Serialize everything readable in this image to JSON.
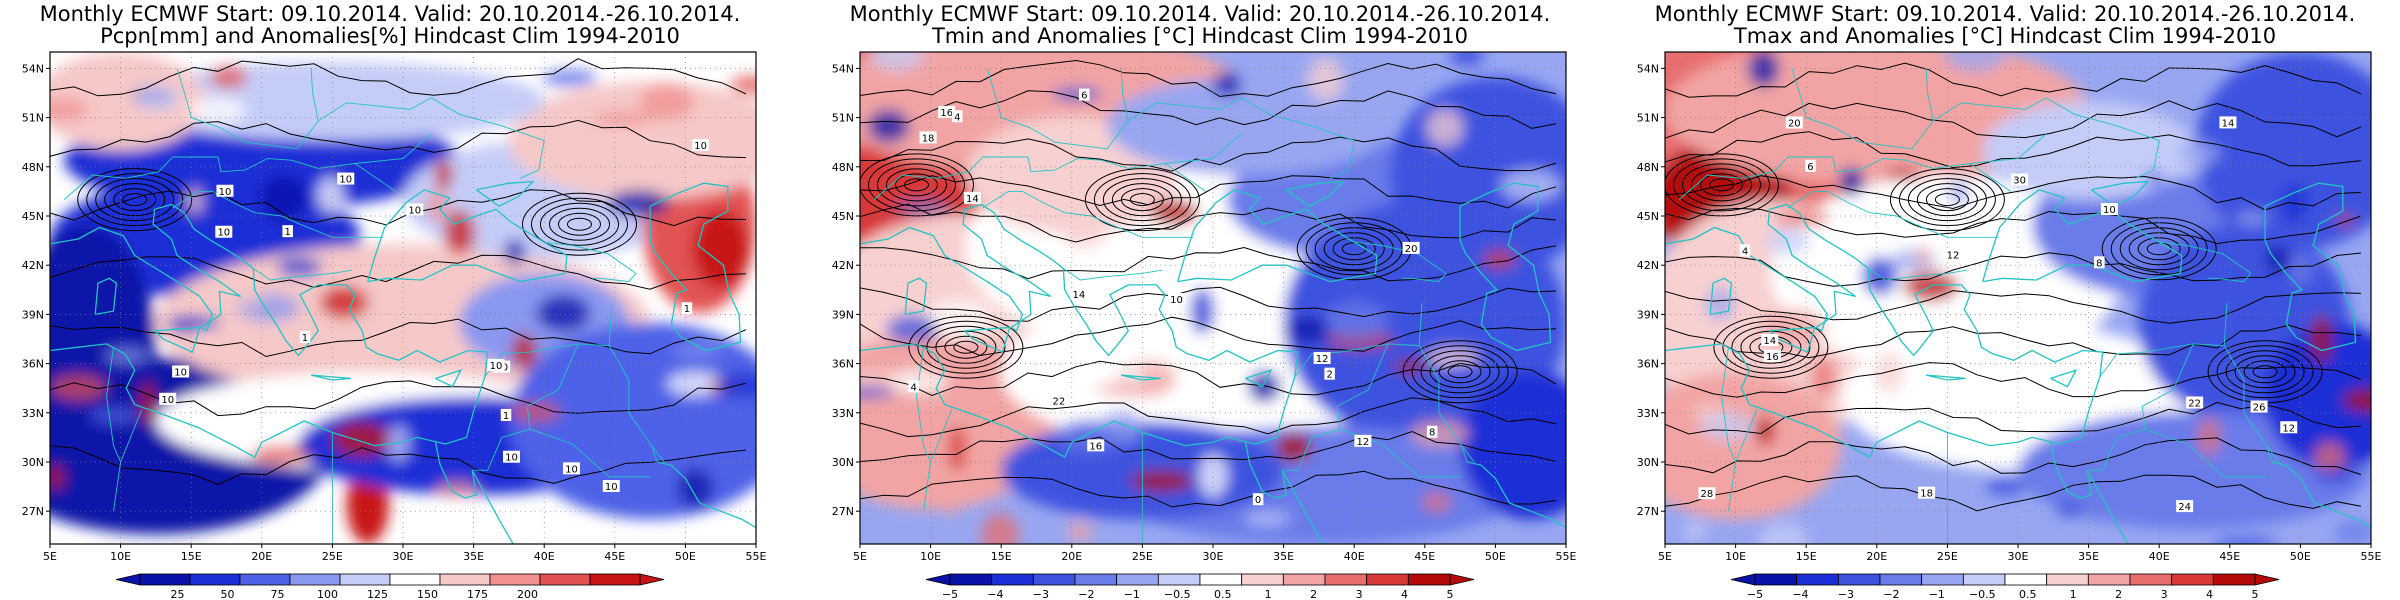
{
  "panels": [
    {
      "title_line1": "Monthly ECMWF Start: 09.10.2014. Valid: 20.10.2014.-26.10.2014.",
      "title_line2": "Pcpn[mm] and Anomalies[%] Hindcast Clim 1994-2010",
      "colorbar_type": "precip",
      "colorbar_labels": [
        "25",
        "50",
        "75",
        "100",
        "125",
        "150",
        "175",
        "200"
      ],
      "colorbar_colors": [
        "#0b12a8",
        "#1c2fd6",
        "#4e62e8",
        "#8a98f0",
        "#c4ccf8",
        "#ffffff",
        "#f6c8c8",
        "#f09090",
        "#e25252",
        "#c81414"
      ],
      "contour_labels": [
        "10",
        "10",
        "10",
        "10",
        "10",
        "10",
        "10",
        "10",
        "10",
        "10",
        "1",
        "1",
        "1",
        "1",
        "10",
        "10"
      ]
    },
    {
      "title_line1": "Monthly ECMWF Start: 09.10.2014. Valid: 20.10.2014.-26.10.2014.",
      "title_line2": "Tmin and Anomalies [°C] Hindcast Clim 1994-2010",
      "colorbar_type": "temp",
      "colorbar_labels": [
        "−5",
        "−4",
        "−3",
        "−2",
        "−1",
        "−0.5",
        "0.5",
        "1",
        "2",
        "3",
        "4",
        "5"
      ],
      "colorbar_colors": [
        "#0b12a8",
        "#1c2fd6",
        "#3e52e0",
        "#6a7cea",
        "#98a6f2",
        "#c4ccf8",
        "#ffffff",
        "#f8d0d0",
        "#f2a4a4",
        "#e86e6e",
        "#d83838",
        "#b40a0a"
      ],
      "contour_labels": [
        "0",
        "2",
        "4",
        "6",
        "8",
        "10",
        "12",
        "14",
        "16",
        "18",
        "20",
        "22",
        "12",
        "14",
        "16",
        "4"
      ]
    },
    {
      "title_line1": "Monthly ECMWF Start: 09.10.2014. Valid: 20.10.2014.-26.10.2014.",
      "title_line2": "Tmax and Anomalies [°C] Hindcast Clim 1994-2010",
      "colorbar_type": "temp",
      "colorbar_labels": [
        "−5",
        "−4",
        "−3",
        "−2",
        "−1",
        "−0.5",
        "0.5",
        "1",
        "2",
        "3",
        "4",
        "5"
      ],
      "colorbar_colors": [
        "#0b12a8",
        "#1c2fd6",
        "#3e52e0",
        "#6a7cea",
        "#98a6f2",
        "#c4ccf8",
        "#ffffff",
        "#f8d0d0",
        "#f2a4a4",
        "#e86e6e",
        "#d83838",
        "#b40a0a"
      ],
      "contour_labels": [
        "4",
        "6",
        "8",
        "10",
        "12",
        "14",
        "16",
        "18",
        "20",
        "22",
        "24",
        "26",
        "28",
        "30",
        "12",
        "14"
      ]
    }
  ],
  "axes": {
    "lon_labels": [
      "5E",
      "10E",
      "15E",
      "20E",
      "25E",
      "30E",
      "35E",
      "40E",
      "45E",
      "50E",
      "55E"
    ],
    "lat_labels": [
      "27N",
      "30N",
      "33N",
      "36N",
      "39N",
      "42N",
      "45N",
      "48N",
      "51N",
      "54N"
    ]
  },
  "colors": {
    "coastline": "#22c4c4",
    "contour": "#000000",
    "frame": "#000000"
  }
}
